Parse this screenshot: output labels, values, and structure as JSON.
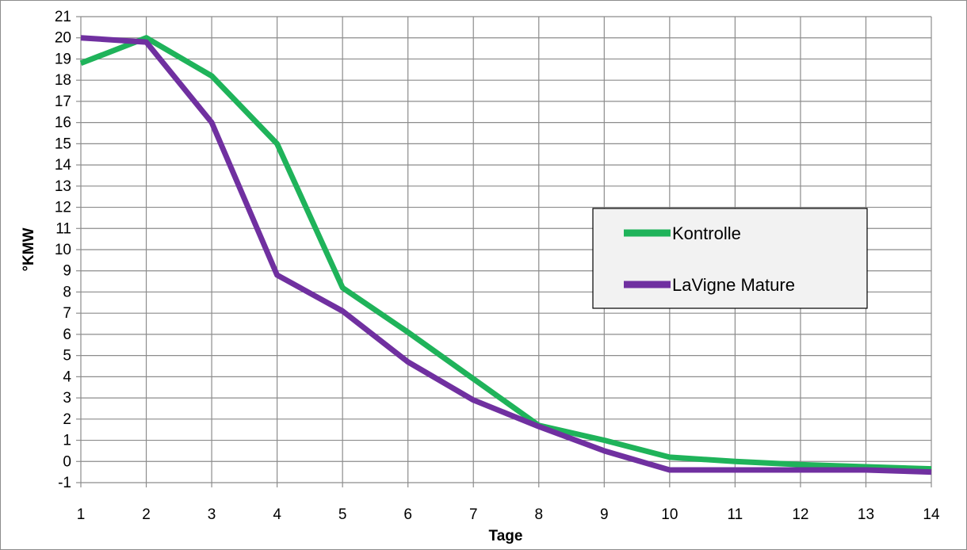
{
  "chart_data": {
    "type": "line",
    "title": "",
    "xlabel": "Tage",
    "ylabel": "°KMW",
    "x": [
      1,
      2,
      3,
      4,
      5,
      6,
      7,
      8,
      9,
      10,
      11,
      12,
      13,
      14
    ],
    "ylim": [
      -1,
      21
    ],
    "xlim": [
      1,
      14
    ],
    "y_ticks": [
      -1,
      0,
      1,
      2,
      3,
      4,
      5,
      6,
      7,
      8,
      9,
      10,
      11,
      12,
      13,
      14,
      15,
      16,
      17,
      18,
      19,
      20,
      21
    ],
    "grid": true,
    "legend_position": "right-middle",
    "series": [
      {
        "name": "Kontrolle",
        "color": "#1fb35a",
        "values": [
          18.8,
          20.0,
          18.2,
          15.0,
          8.2,
          6.1,
          3.9,
          1.7,
          1.0,
          0.2,
          0.0,
          -0.15,
          -0.25,
          -0.35
        ]
      },
      {
        "name": "LaVigne Mature",
        "color": "#7030a0",
        "values": [
          20.0,
          19.8,
          16.0,
          8.8,
          7.1,
          4.7,
          2.9,
          1.65,
          0.5,
          -0.4,
          -0.4,
          -0.4,
          -0.4,
          -0.5
        ]
      }
    ]
  }
}
